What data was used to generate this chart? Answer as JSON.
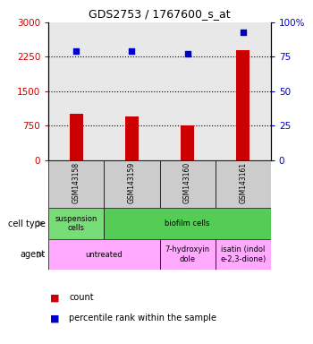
{
  "title": "GDS2753 / 1767600_s_at",
  "samples": [
    "GSM143158",
    "GSM143159",
    "GSM143160",
    "GSM143161"
  ],
  "counts": [
    1000,
    950,
    750,
    2400
  ],
  "percentiles": [
    79,
    79,
    77,
    93
  ],
  "ylim_left": [
    0,
    3000
  ],
  "ylim_right": [
    0,
    100
  ],
  "yticks_left": [
    0,
    750,
    1500,
    2250,
    3000
  ],
  "yticks_right": [
    0,
    25,
    50,
    75,
    100
  ],
  "bar_color": "#cc0000",
  "dot_color": "#0000cc",
  "cell_type_row": [
    {
      "label": "suspension\ncells",
      "span": 1,
      "color": "#77dd77"
    },
    {
      "label": "biofilm cells",
      "span": 3,
      "color": "#55cc55"
    }
  ],
  "agent_row": [
    {
      "label": "untreated",
      "span": 2,
      "color": "#ffaaff"
    },
    {
      "label": "7-hydroxyin\ndole",
      "span": 1,
      "color": "#ffaaff"
    },
    {
      "label": "isatin (indol\ne-2,3-dione)",
      "span": 1,
      "color": "#ffaaff"
    }
  ],
  "legend_count_color": "#cc0000",
  "legend_pct_color": "#0000cc",
  "tick_label_color_left": "#cc0000",
  "tick_label_color_right": "#0000cc",
  "background_color": "#ffffff",
  "plot_bg_color": "#e8e8e8",
  "sample_bg_color": "#cccccc"
}
